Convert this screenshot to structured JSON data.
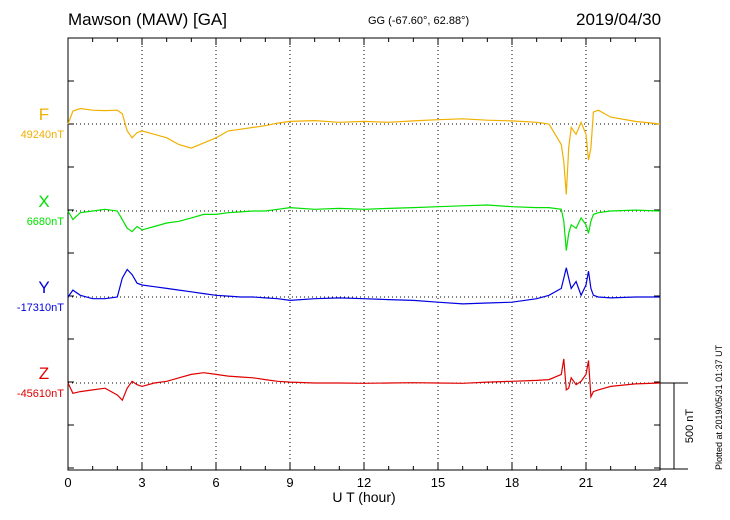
{
  "header": {
    "station": "Mawson (MAW)  [GA]",
    "coords": "GG (-67.60°,  62.88°)",
    "date": "2019/04/30"
  },
  "plotted_note": "Plotted at 2019/05/31 01:37 UT",
  "chart_data": {
    "type": "line",
    "xlabel": "U T (hour)",
    "xlim": [
      0,
      24
    ],
    "xticks": [
      "0",
      "3",
      "6",
      "9",
      "12",
      "15",
      "18",
      "21",
      "24"
    ],
    "scale_bar": {
      "value": 500,
      "label": "500 nT"
    },
    "units": "nT",
    "series": [
      {
        "name": "F",
        "baseline_label": "49240nT",
        "baseline": 49240,
        "color": "#f0b000",
        "x": [
          0,
          0.2,
          0.5,
          1,
          1.5,
          2,
          2.2,
          2.4,
          2.6,
          2.8,
          3,
          3.5,
          4,
          4.5,
          5,
          5.5,
          6,
          6.5,
          7,
          7.5,
          8,
          8.5,
          9,
          10,
          11,
          12,
          13,
          14,
          15,
          16,
          17,
          18,
          19,
          19.5,
          20,
          20.1,
          20.2,
          20.3,
          20.4,
          20.6,
          20.8,
          21,
          21.1,
          21.2,
          21.3,
          21.5,
          22,
          23,
          24
        ],
        "y": [
          49240,
          49315,
          49330,
          49320,
          49318,
          49320,
          49300,
          49200,
          49160,
          49190,
          49200,
          49180,
          49160,
          49120,
          49100,
          49130,
          49160,
          49200,
          49210,
          49220,
          49230,
          49245,
          49255,
          49260,
          49250,
          49255,
          49250,
          49258,
          49265,
          49270,
          49262,
          49258,
          49250,
          49240,
          49120,
          49020,
          48830,
          49100,
          49220,
          49180,
          49250,
          49180,
          49030,
          49100,
          49310,
          49320,
          49280,
          49255,
          49240
        ]
      },
      {
        "name": "X",
        "baseline_label": "6680nT",
        "baseline": 6680,
        "color": "#00e000",
        "x": [
          0,
          0.2,
          0.5,
          1,
          1.5,
          2,
          2.2,
          2.4,
          2.6,
          2.8,
          3,
          3.5,
          4,
          4.5,
          5,
          5.5,
          6,
          6.5,
          7,
          7.5,
          8,
          8.5,
          9,
          10,
          11,
          12,
          13,
          14,
          15,
          16,
          17,
          18,
          19,
          19.5,
          20,
          20.1,
          20.2,
          20.3,
          20.4,
          20.6,
          20.8,
          21,
          21.1,
          21.2,
          21.3,
          21.5,
          22,
          23,
          24
        ],
        "y": [
          6680,
          6630,
          6670,
          6680,
          6690,
          6680,
          6630,
          6580,
          6560,
          6590,
          6570,
          6590,
          6610,
          6620,
          6640,
          6660,
          6660,
          6670,
          6675,
          6680,
          6680,
          6690,
          6700,
          6690,
          6695,
          6690,
          6695,
          6700,
          6705,
          6710,
          6715,
          6705,
          6700,
          6700,
          6690,
          6620,
          6450,
          6550,
          6600,
          6580,
          6640,
          6600,
          6550,
          6620,
          6660,
          6670,
          6680,
          6685,
          6680
        ]
      },
      {
        "name": "Y",
        "baseline_label": "-17310nT",
        "baseline": -17310,
        "color": "#0000e0",
        "x": [
          0,
          0.2,
          0.5,
          1,
          1.5,
          2,
          2.2,
          2.4,
          2.6,
          2.8,
          3,
          3.5,
          4,
          4.5,
          5,
          5.5,
          6,
          6.5,
          7,
          7.5,
          8,
          8.5,
          9,
          10,
          11,
          12,
          13,
          14,
          15,
          16,
          17,
          18,
          19,
          19.5,
          20,
          20.1,
          20.2,
          20.3,
          20.4,
          20.6,
          20.8,
          21,
          21.1,
          21.2,
          21.3,
          21.5,
          22,
          23,
          24
        ],
        "y": [
          -17310,
          -17270,
          -17300,
          -17320,
          -17320,
          -17310,
          -17200,
          -17150,
          -17180,
          -17230,
          -17240,
          -17250,
          -17260,
          -17270,
          -17280,
          -17290,
          -17300,
          -17305,
          -17310,
          -17310,
          -17315,
          -17320,
          -17330,
          -17320,
          -17315,
          -17320,
          -17325,
          -17330,
          -17340,
          -17350,
          -17345,
          -17340,
          -17320,
          -17300,
          -17260,
          -17200,
          -17140,
          -17200,
          -17260,
          -17220,
          -17300,
          -17240,
          -17160,
          -17260,
          -17300,
          -17310,
          -17315,
          -17310,
          -17310
        ]
      },
      {
        "name": "Z",
        "baseline_label": "-45610nT",
        "baseline": -45610,
        "color": "#e00000",
        "x": [
          0,
          0.2,
          0.5,
          1,
          1.5,
          2,
          2.2,
          2.4,
          2.6,
          2.8,
          3,
          3.5,
          4,
          4.5,
          5,
          5.5,
          6,
          6.5,
          7,
          7.5,
          8,
          8.5,
          9,
          10,
          11,
          12,
          13,
          14,
          15,
          16,
          17,
          18,
          19,
          19.5,
          20,
          20.1,
          20.2,
          20.3,
          20.4,
          20.6,
          20.8,
          21,
          21.1,
          21.2,
          21.3,
          21.5,
          22,
          23,
          24
        ],
        "y": [
          -45610,
          -45670,
          -45660,
          -45650,
          -45640,
          -45680,
          -45710,
          -45640,
          -45600,
          -45620,
          -45630,
          -45610,
          -45600,
          -45580,
          -45560,
          -45550,
          -45560,
          -45570,
          -45575,
          -45580,
          -45590,
          -45600,
          -45605,
          -45610,
          -45610,
          -45612,
          -45610,
          -45608,
          -45610,
          -45612,
          -45605,
          -45600,
          -45595,
          -45590,
          -45560,
          -45470,
          -45650,
          -45640,
          -45580,
          -45620,
          -45600,
          -45560,
          -45480,
          -45690,
          -45660,
          -45650,
          -45630,
          -45615,
          -45610
        ]
      }
    ]
  }
}
